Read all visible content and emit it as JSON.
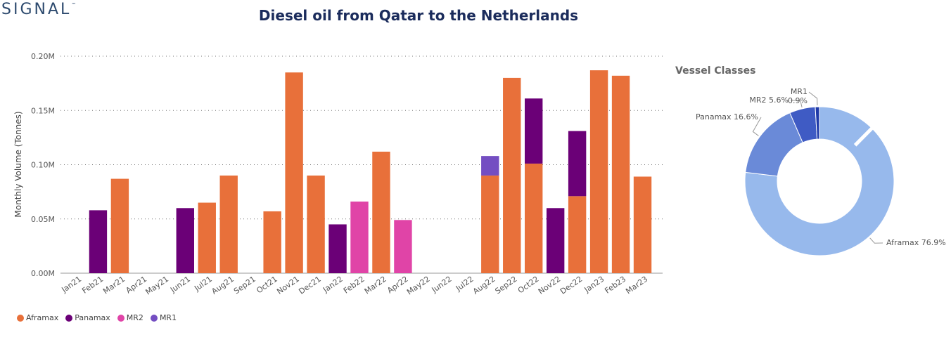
{
  "brand": {
    "logo_text": "SIGNAL",
    "logo_mark": "™"
  },
  "chart_data": [
    {
      "type": "bar",
      "stacked": true,
      "title": "Diesel oil from Qatar to the Netherlands",
      "xlabel": "",
      "ylabel": "Monthly Volume (Tonnes)",
      "ylim": [
        0,
        0.2
      ],
      "y_unit": "M",
      "y_ticks": [
        "0.00M",
        "0.05M",
        "0.10M",
        "0.15M",
        "0.20M"
      ],
      "grid": true,
      "legend_position": "bottom-left",
      "categories": [
        "Jan21",
        "Feb21",
        "Mar21",
        "Apr21",
        "May21",
        "Jun21",
        "Jul21",
        "Aug21",
        "Sep21",
        "Oct21",
        "Nov21",
        "Dec21",
        "Jan22",
        "Feb22",
        "Mar22",
        "Apr22",
        "May22",
        "Jun22",
        "Jul22",
        "Aug22",
        "Sep22",
        "Oct22",
        "Nov22",
        "Dec22",
        "Jan23",
        "Feb23",
        "Mar23"
      ],
      "series": [
        {
          "name": "Aframax",
          "color": "#E8703A",
          "values": [
            0,
            0,
            0.087,
            0,
            0,
            0,
            0.065,
            0.09,
            0,
            0.057,
            0.185,
            0.09,
            0,
            0,
            0.112,
            0,
            0,
            0,
            0,
            0.09,
            0.18,
            0.101,
            0,
            0.071,
            0.187,
            0.182,
            0.089
          ]
        },
        {
          "name": "Panamax",
          "color": "#6B0077",
          "values": [
            0,
            0.058,
            0,
            0,
            0,
            0.06,
            0,
            0,
            0,
            0,
            0,
            0,
            0.045,
            0,
            0,
            0,
            0,
            0,
            0,
            0,
            0,
            0.06,
            0.06,
            0.06,
            0,
            0,
            0
          ]
        },
        {
          "name": "MR2",
          "color": "#E044A7",
          "values": [
            0,
            0,
            0,
            0,
            0,
            0,
            0,
            0,
            0,
            0,
            0,
            0,
            0,
            0.066,
            0,
            0.049,
            0,
            0,
            0,
            0,
            0,
            0,
            0,
            0,
            0,
            0,
            0
          ]
        },
        {
          "name": "MR1",
          "color": "#744EC2",
          "values": [
            0,
            0,
            0,
            0,
            0,
            0,
            0,
            0,
            0,
            0,
            0,
            0,
            0,
            0,
            0,
            0,
            0,
            0,
            0,
            0.018,
            0,
            0,
            0,
            0,
            0,
            0,
            0
          ]
        }
      ]
    },
    {
      "type": "pie",
      "donut": true,
      "title": "Vessel Classes",
      "slices": [
        {
          "name": "Aframax",
          "label": "Aframax 76.9%",
          "value": 76.9,
          "color": "#97B9EC"
        },
        {
          "name": "Panamax",
          "label": "Panamax 16.6%",
          "value": 16.6,
          "color": "#6A8AD8"
        },
        {
          "name": "MR2",
          "label": "MR2 5.6%",
          "value": 5.6,
          "color": "#3F5BC4"
        },
        {
          "name": "MR1",
          "label": "MR1 0.9%",
          "value": 0.9,
          "color": "#1F3AA8"
        }
      ]
    }
  ]
}
